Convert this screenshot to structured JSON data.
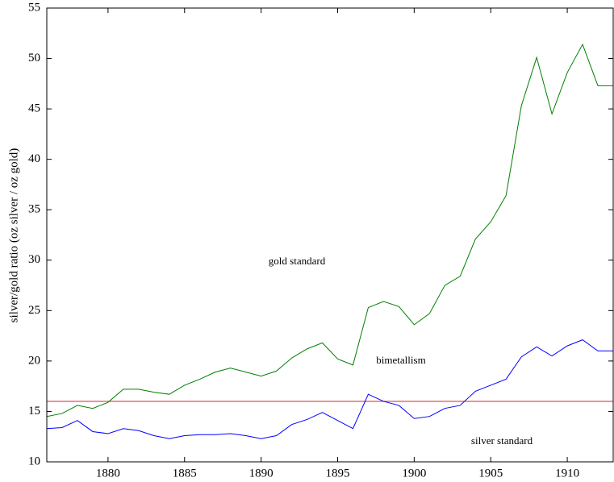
{
  "chart_data": {
    "type": "line",
    "y_label": "silver/gold ratio (oz silver / oz gold)",
    "x": [
      1876,
      1877,
      1878,
      1879,
      1880,
      1881,
      1882,
      1883,
      1884,
      1885,
      1886,
      1887,
      1888,
      1889,
      1890,
      1891,
      1892,
      1893,
      1894,
      1895,
      1896,
      1897,
      1898,
      1899,
      1900,
      1901,
      1902,
      1903,
      1904,
      1905,
      1906,
      1907,
      1908,
      1909,
      1910,
      1911,
      1912,
      1913
    ],
    "series": [
      {
        "color": "#008000",
        "values": [
          14.5,
          14.8,
          15.6,
          15.3,
          15.9,
          17.2,
          17.2,
          16.9,
          16.7,
          17.6,
          18.2,
          18.9,
          19.3,
          18.9,
          18.5,
          19.0,
          20.3,
          21.2,
          21.8,
          20.2,
          19.6,
          25.3,
          25.9,
          25.4,
          23.6,
          24.7,
          27.5,
          28.4,
          32.1,
          33.8,
          36.4,
          45.3,
          50.1,
          44.5,
          48.6,
          51.4,
          47.3,
          47.3
        ]
      },
      {
        "color": "#0000ff",
        "values": [
          13.3,
          13.4,
          14.1,
          13.0,
          12.8,
          13.3,
          13.1,
          12.6,
          12.3,
          12.6,
          12.7,
          12.7,
          12.8,
          12.6,
          12.3,
          12.6,
          13.7,
          14.2,
          14.9,
          14.1,
          13.3,
          16.7,
          16.0,
          15.6,
          14.3,
          14.5,
          15.3,
          15.6,
          17.0,
          17.6,
          18.2,
          20.4,
          21.4,
          20.5,
          21.5,
          22.1,
          21.0,
          21.0
        ]
      }
    ],
    "reference_line": {
      "value": 16,
      "color": "#e06060"
    },
    "annotations": [
      "gold standard",
      "bimetallism",
      "silver standard"
    ],
    "xlim": [
      1876,
      1913
    ],
    "xticks": [
      1880,
      1885,
      1890,
      1895,
      1900,
      1905,
      1910
    ],
    "ylim": [
      10,
      55
    ],
    "yticks": [
      10,
      15,
      20,
      25,
      30,
      35,
      40,
      45,
      50,
      55
    ]
  }
}
